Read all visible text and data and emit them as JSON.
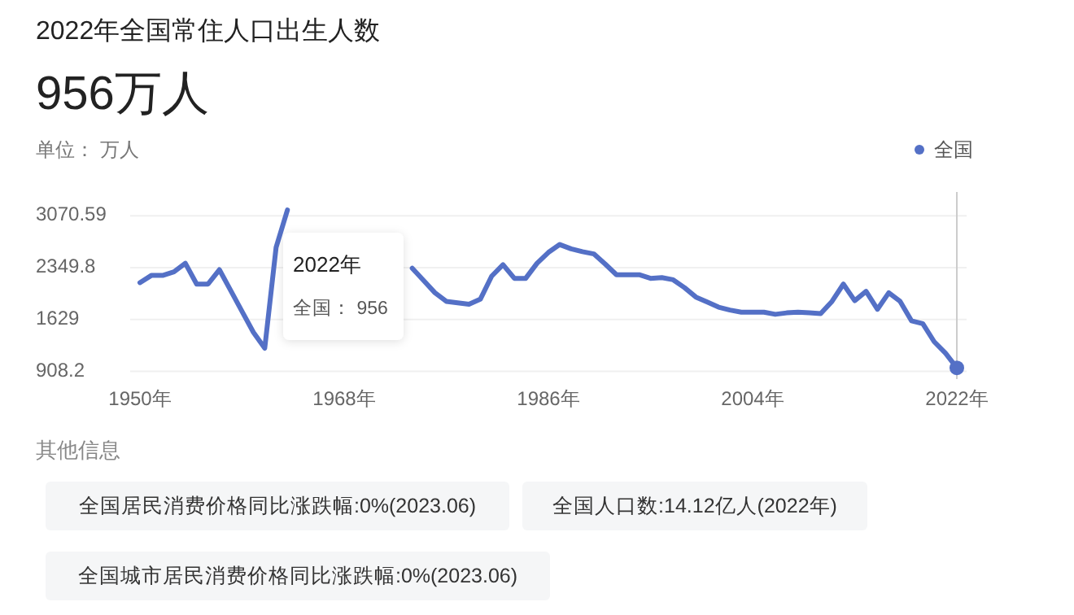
{
  "chart_data": {
    "type": "line",
    "title": "2022年全国常住人口出生人数",
    "subtitle": "956万人",
    "ylabel": "单位： 万人",
    "x": [
      1950,
      1951,
      1952,
      1953,
      1954,
      1955,
      1956,
      1957,
      1958,
      1959,
      1960,
      1961,
      1962,
      1963,
      1964,
      1965,
      1966,
      1967,
      1968,
      1969,
      1970,
      1971,
      1972,
      1973,
      1974,
      1975,
      1976,
      1977,
      1978,
      1979,
      1980,
      1981,
      1982,
      1983,
      1984,
      1985,
      1986,
      1987,
      1988,
      1989,
      1990,
      1991,
      1992,
      1993,
      1994,
      1995,
      1996,
      1997,
      1998,
      1999,
      2000,
      2001,
      2002,
      2003,
      2004,
      2005,
      2006,
      2007,
      2008,
      2009,
      2010,
      2011,
      2012,
      2013,
      2014,
      2015,
      2016,
      2017,
      2018,
      2019,
      2020,
      2021,
      2022
    ],
    "series": [
      {
        "name": "全国",
        "color": "#5470c6",
        "values": [
          2140,
          2240,
          2240,
          2290,
          2410,
          2120,
          2120,
          2320,
          2030,
          1740,
          1450,
          1230,
          2630,
          3150,
          null,
          null,
          null,
          null,
          null,
          null,
          null,
          null,
          null,
          null,
          2340,
          2170,
          2000,
          1880,
          1860,
          1840,
          1910,
          2230,
          2390,
          2200,
          2200,
          2410,
          2560,
          2670,
          2610,
          2570,
          2540,
          2400,
          2250,
          2250,
          2250,
          2200,
          2210,
          2180,
          2070,
          1940,
          1870,
          1800,
          1760,
          1730,
          1730,
          1730,
          1700,
          1720,
          1730,
          1720,
          1710,
          1880,
          2120,
          1890,
          2020,
          1770,
          2000,
          1880,
          1610,
          1570,
          1320,
          1160,
          956
        ]
      }
    ],
    "xlim": [
      1950,
      2022
    ],
    "xticks": [
      {
        "value": 1950,
        "label": "1950年"
      },
      {
        "value": 1968,
        "label": "1968年"
      },
      {
        "value": 1986,
        "label": "1986年"
      },
      {
        "value": 2004,
        "label": "2004年"
      },
      {
        "value": 2022,
        "label": "2022年"
      }
    ],
    "ylim": [
      800,
      3400
    ],
    "yticks": [
      908.2,
      1629,
      2349.8,
      3070.59
    ],
    "grid": "y",
    "legend": "top right",
    "marker": "none",
    "line_style": "solid",
    "ref_lines": [
      {
        "axis": "x",
        "value": 2022,
        "color": "#cccccc"
      }
    ],
    "annotations": [
      "2022年",
      "全国： 956",
      "其他信息",
      "全国居民消费价格同比涨跌幅:0%(2023.06)",
      "全国人口数:14.12亿人(2022年)",
      "全国城市居民消费价格同比涨跌幅:0%(2023.06)"
    ]
  }
}
